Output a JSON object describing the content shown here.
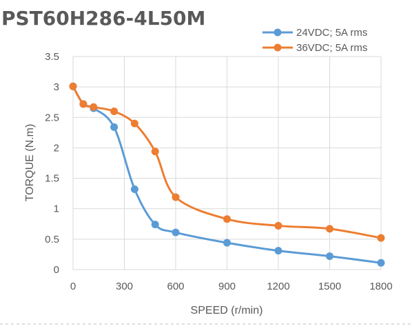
{
  "chart_data": {
    "type": "line",
    "title": "PST60H286-4L50M",
    "xlabel": "SPEED (r/min)",
    "ylabel": "TORQUE (N.m)",
    "xlim": [
      0,
      1800
    ],
    "ylim": [
      0,
      3.5
    ],
    "xticks": [
      0,
      300,
      600,
      900,
      1200,
      1500,
      1800
    ],
    "yticks": [
      0,
      0.5,
      1,
      1.5,
      2,
      2.5,
      3,
      3.5
    ],
    "xtick_labels": [
      "0",
      "300",
      "600",
      "900",
      "1200",
      "1500",
      "1800"
    ],
    "ytick_labels": [
      "0",
      "0.5",
      "1",
      "1.5",
      "2",
      "2.5",
      "3",
      "3.5"
    ],
    "grid": true,
    "legend_position": "top-right",
    "series": [
      {
        "name": "24VDC; 5A rms",
        "color": "#5B9BD5",
        "x": [
          0,
          60,
          120,
          240,
          360,
          480,
          600,
          900,
          1200,
          1500,
          1800
        ],
        "y": [
          3.01,
          2.72,
          2.65,
          2.34,
          1.32,
          0.74,
          0.61,
          0.44,
          0.31,
          0.22,
          0.11
        ]
      },
      {
        "name": "36VDC; 5A rms",
        "color": "#ED7D31",
        "x": [
          0,
          60,
          120,
          240,
          360,
          480,
          600,
          900,
          1200,
          1500,
          1800
        ],
        "y": [
          3.01,
          2.72,
          2.67,
          2.6,
          2.4,
          1.94,
          1.19,
          0.83,
          0.72,
          0.67,
          0.52
        ]
      }
    ]
  }
}
